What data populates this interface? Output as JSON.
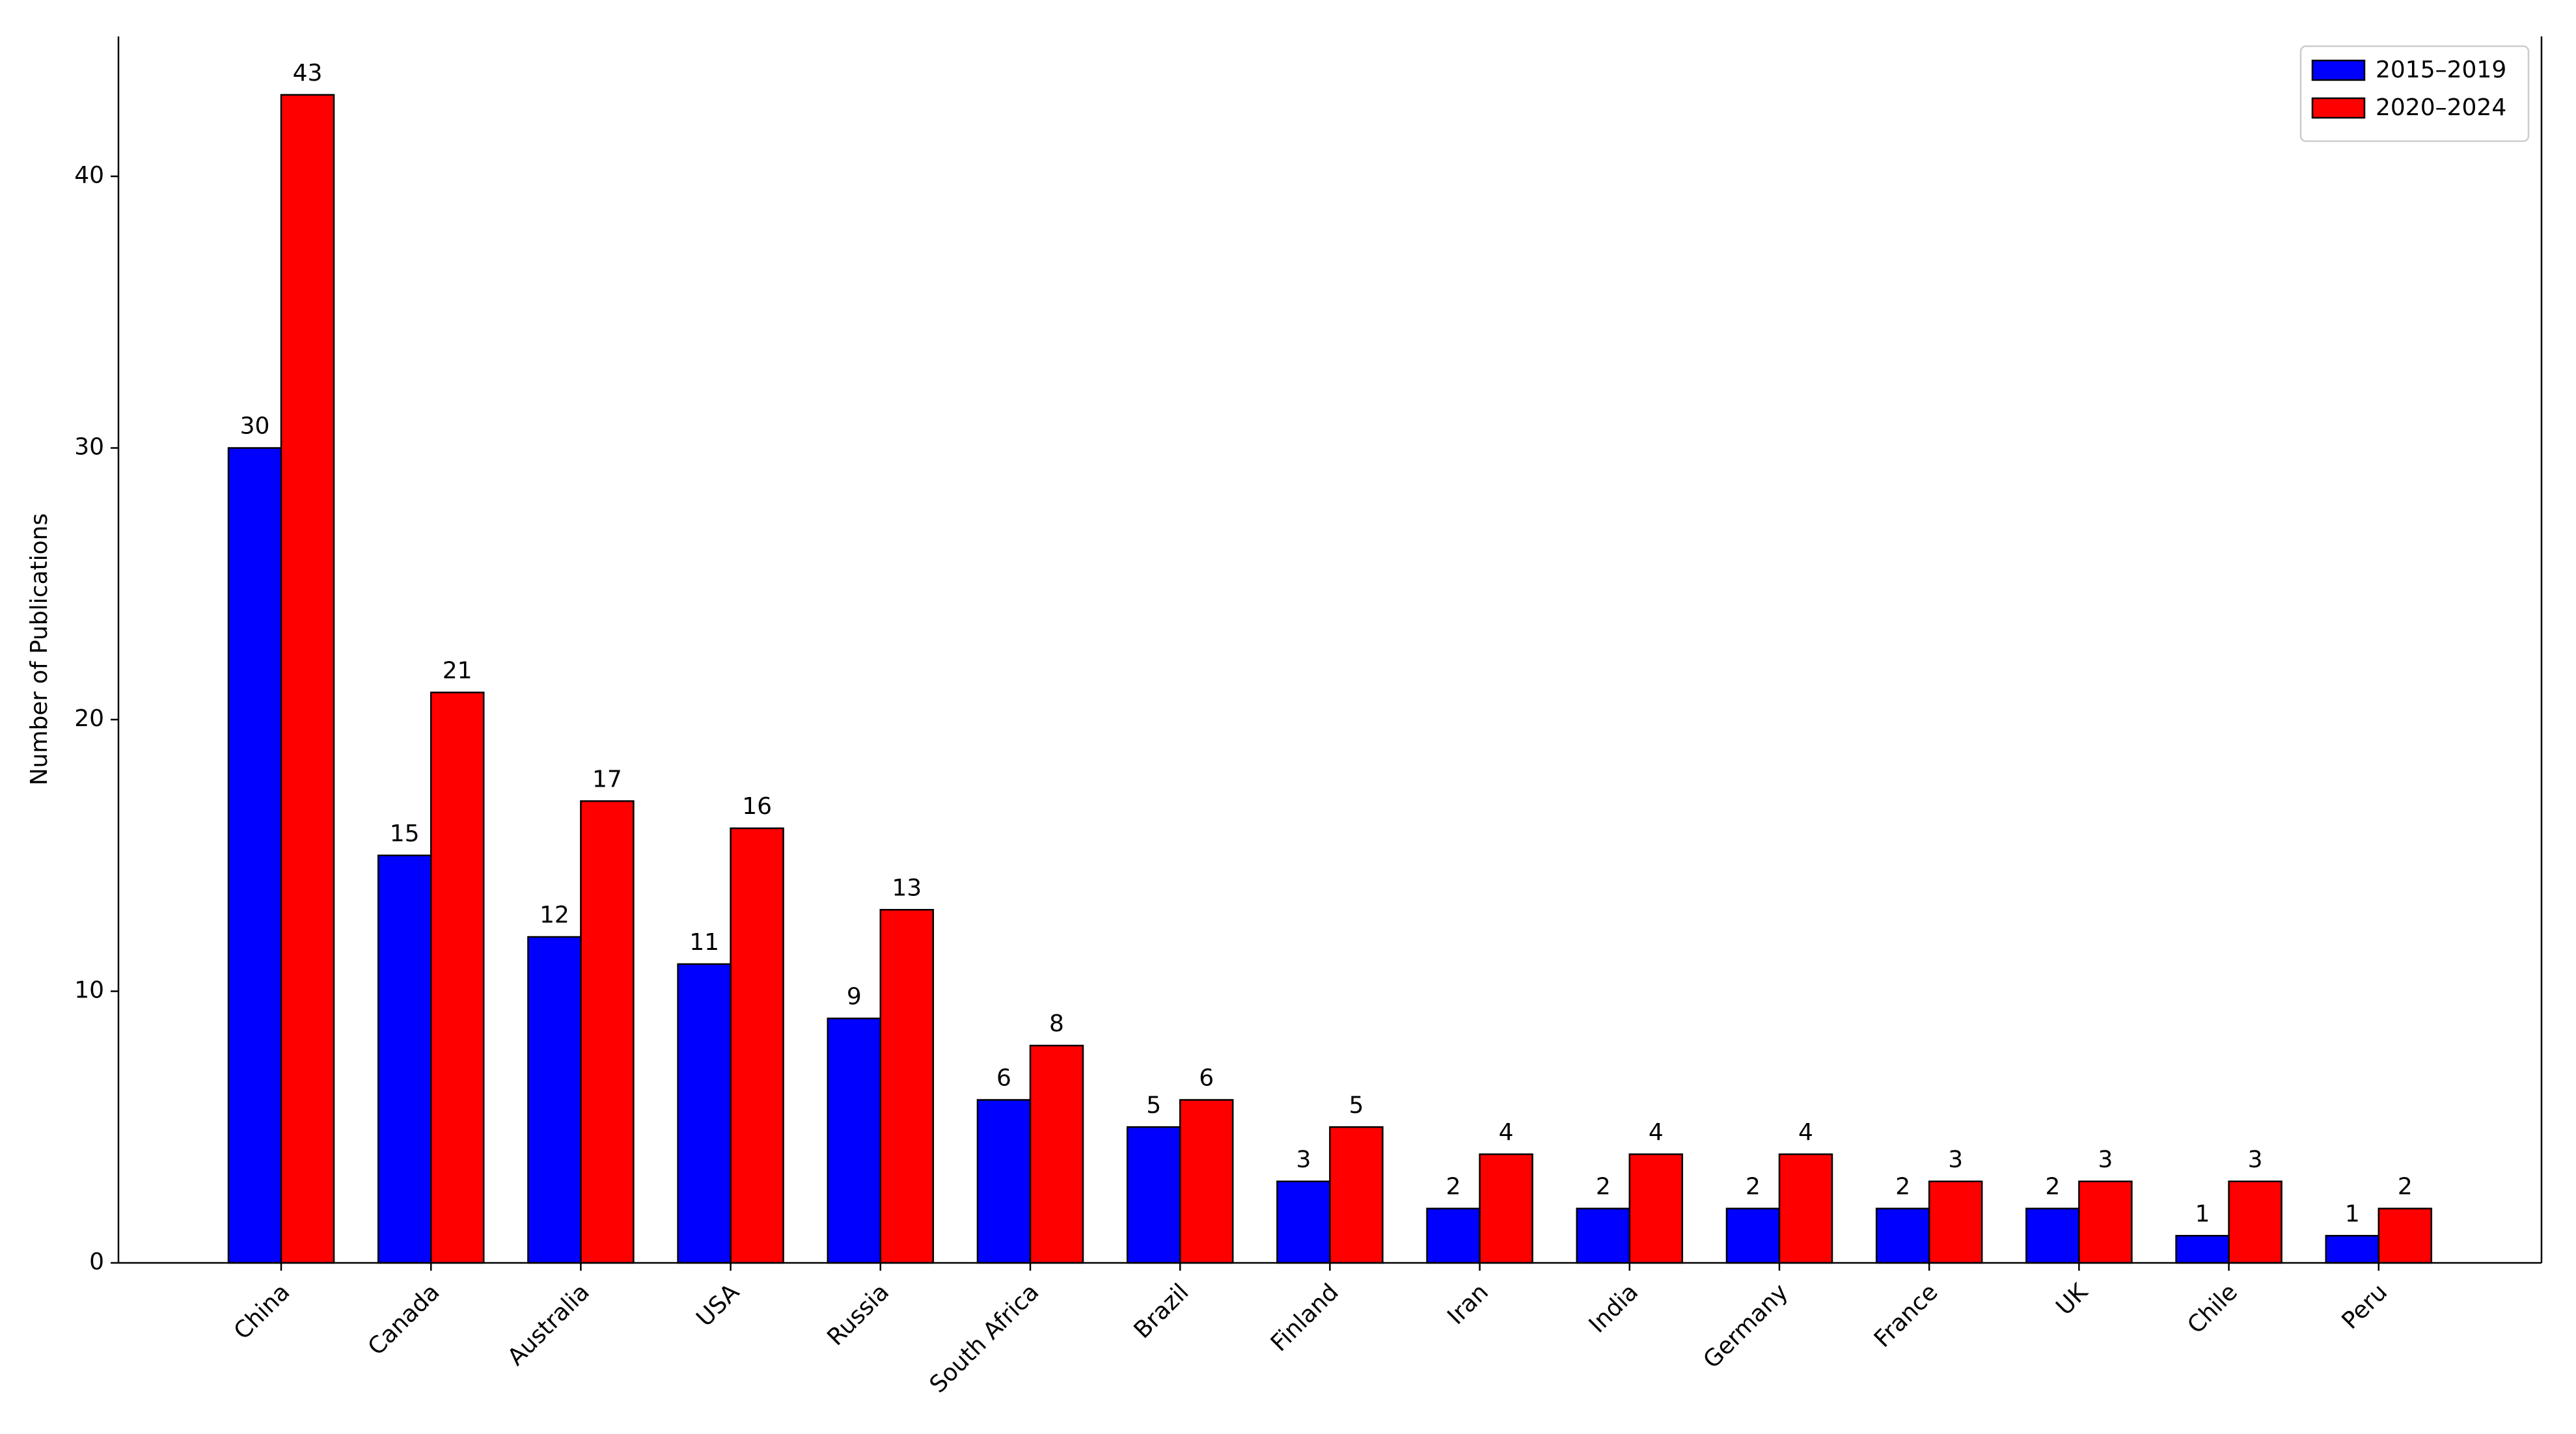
{
  "chart_data": {
    "type": "bar",
    "y_label": "Number of Publications",
    "categories": [
      "China",
      "Canada",
      "Australia",
      "USA",
      "Russia",
      "South Africa",
      "Brazil",
      "Finland",
      "Iran",
      "India",
      "Germany",
      "France",
      "UK",
      "Chile",
      "Peru"
    ],
    "series": [
      {
        "name": "2015–2019",
        "color": "#0000ff",
        "values": [
          30,
          15,
          12,
          11,
          9,
          6,
          5,
          3,
          2,
          2,
          2,
          2,
          2,
          1,
          1
        ]
      },
      {
        "name": "2020–2024",
        "color": "#ff0000",
        "values": [
          43,
          21,
          17,
          16,
          13,
          8,
          6,
          5,
          4,
          4,
          4,
          3,
          3,
          3,
          2
        ]
      }
    ],
    "ylim": [
      0,
      45.15
    ],
    "yticks": [
      0,
      10,
      20,
      30,
      40
    ],
    "legend": "upper right",
    "grid": false
  }
}
